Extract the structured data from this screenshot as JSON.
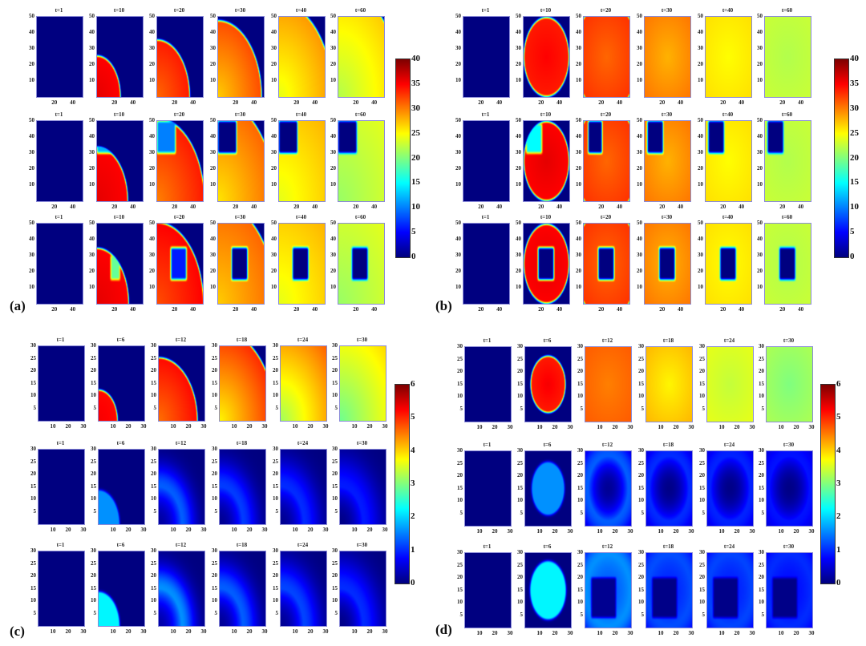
{
  "chart_data": [
    {
      "panel": "a",
      "label": "(a)",
      "type": "heatmap",
      "grid": [
        50,
        50
      ],
      "source": "corner",
      "times": [
        "t=1",
        "t=10",
        "t=20",
        "t=30",
        "t=40",
        "t=60"
      ],
      "x_ticks": [
        20,
        40
      ],
      "y_ticks": [
        10,
        20,
        30,
        40,
        50
      ],
      "colorbar": {
        "min": 0,
        "max": 40,
        "ticks": [
          0,
          5,
          10,
          15,
          20,
          25,
          30,
          35,
          40
        ]
      },
      "rows": [
        [
          {},
          {
            "r": 25,
            "vin": 36,
            "ve": 35
          },
          {
            "r": 35,
            "vin": 31,
            "ve": 34
          },
          {
            "r": 47,
            "vin": 27,
            "ve": 32
          },
          {
            "r": 58,
            "vin": 24,
            "ve": 29
          },
          {
            "r": 68,
            "vin": 22,
            "ve": 27
          }
        ],
        [
          {},
          {
            "r": 33,
            "vin": 36,
            "ve": 35,
            "hole": [
              0,
              20,
              30,
              50
            ],
            "hv": 12
          },
          {
            "r": 51,
            "vin": 30,
            "ve": 34,
            "hole": [
              0,
              20,
              30,
              50
            ],
            "hv": 10
          },
          {
            "r": 62,
            "vin": 26,
            "ve": 31,
            "hole": [
              0,
              20,
              30,
              50
            ],
            "hv": 0
          },
          {
            "r": 90,
            "vin": 24,
            "ve": 29,
            "hole": [
              0,
              20,
              30,
              50
            ],
            "hv": 0
          },
          {
            "r": 95,
            "vin": 21,
            "ve": 25,
            "hole": [
              0,
              20,
              30,
              50
            ],
            "hv": 0
          }
        ],
        [
          {},
          {
            "r": 34,
            "vin": 36,
            "ve": 35,
            "hole": [
              15,
              25,
              15,
              30
            ],
            "hv": 19
          },
          {
            "r": 50,
            "vin": 32,
            "ve": 35,
            "hole": [
              15,
              32,
              15,
              35
            ],
            "hv": 6
          },
          {
            "r": 62,
            "vin": 27,
            "ve": 31,
            "hole": [
              15,
              32,
              15,
              35
            ],
            "hv": 0
          },
          {
            "r": 90,
            "vin": 24,
            "ve": 29,
            "hole": [
              15,
              32,
              15,
              35
            ],
            "hv": 0
          },
          {
            "r": 95,
            "vin": 21,
            "ve": 25,
            "hole": [
              15,
              32,
              15,
              35
            ],
            "hv": 0
          }
        ]
      ]
    },
    {
      "panel": "b",
      "label": "(b)",
      "type": "heatmap",
      "grid": [
        50,
        50
      ],
      "source": "center",
      "times": [
        "t=1",
        "t=10",
        "t=20",
        "t=30",
        "t=40",
        "t=60"
      ],
      "x_ticks": [
        20,
        40
      ],
      "y_ticks": [
        10,
        20,
        30,
        40,
        50
      ],
      "colorbar": {
        "min": 0,
        "max": 40,
        "ticks": [
          0,
          5,
          10,
          15,
          20,
          25,
          30,
          35,
          40
        ]
      },
      "rows": [
        [
          {},
          {
            "r": 24,
            "vin": 35,
            "ve": 34
          },
          {
            "r": 34,
            "vin": 31,
            "ve": 33
          },
          {
            "r": 45,
            "vin": 28,
            "ve": 31
          },
          {
            "r": 60,
            "vin": 25,
            "ve": 27
          },
          {
            "r": 80,
            "vin": 22,
            "ve": 24
          }
        ],
        [
          {},
          {
            "r": 24,
            "vin": 36,
            "ve": 35,
            "hole": [
              3,
              20,
              30,
              48
            ],
            "hv": 15
          },
          {
            "r": 34,
            "vin": 31,
            "ve": 33,
            "hole": [
              5,
              20,
              30,
              50
            ],
            "hv": 0
          },
          {
            "r": 45,
            "vin": 28,
            "ve": 31,
            "hole": [
              3,
              20,
              30,
              50
            ],
            "hv": 0
          },
          {
            "r": 60,
            "vin": 25,
            "ve": 27,
            "hole": [
              3,
              20,
              30,
              50
            ],
            "hv": 0
          },
          {
            "r": 80,
            "vin": 22,
            "ve": 24,
            "hole": [
              3,
              20,
              30,
              50
            ],
            "hv": 0
          }
        ],
        [
          {},
          {
            "r": 24,
            "vin": 36,
            "ve": 35,
            "hole": [
              16,
              33,
              15,
              35
            ],
            "hv": 0
          },
          {
            "r": 34,
            "vin": 31,
            "ve": 33,
            "hole": [
              16,
              33,
              15,
              35
            ],
            "hv": 0
          },
          {
            "r": 45,
            "vin": 28,
            "ve": 31,
            "hole": [
              16,
              33,
              15,
              35
            ],
            "hv": 0
          },
          {
            "r": 60,
            "vin": 25,
            "ve": 27,
            "hole": [
              16,
              33,
              15,
              35
            ],
            "hv": 0
          },
          {
            "r": 80,
            "vin": 22,
            "ve": 24,
            "hole": [
              16,
              33,
              15,
              35
            ],
            "hv": 0
          }
        ]
      ]
    },
    {
      "panel": "c",
      "label": "(c)",
      "type": "heatmap",
      "grid": [
        30,
        30
      ],
      "source": "corner",
      "times": [
        "t=1",
        "t=6",
        "t=12",
        "t=18",
        "t=24",
        "t=30"
      ],
      "x_ticks": [
        10,
        20,
        30
      ],
      "y_ticks": [
        5,
        10,
        15,
        20,
        25,
        30
      ],
      "colorbar": {
        "min": 0,
        "max": 6,
        "ticks": [
          0,
          1,
          2,
          3,
          4,
          5,
          6
        ]
      },
      "rows": [
        [
          {},
          {
            "r": 12,
            "vin": 5.3,
            "ve": 5.2
          },
          {
            "r": 25,
            "vin": 4.6,
            "ve": 5.2
          },
          {
            "r": 36,
            "vin": 3.8,
            "ve": 5.0
          },
          {
            "r": 43,
            "vin": 3.2,
            "ve": 4.7
          },
          {
            "r": 55,
            "vin": 2.9,
            "ve": 4.3
          }
        ],
        [
          {},
          {
            "glow": true,
            "r": 13,
            "amp": 1.6,
            "inner": 1,
            "w": 1
          },
          {
            "glow": true,
            "r": 15,
            "amp": 1.3,
            "inner": 0.15,
            "w": 9
          },
          {
            "glow": true,
            "r": 15,
            "amp": 1.1,
            "inner": 0.1,
            "w": 10
          },
          {
            "glow": true,
            "r": 15,
            "amp": 1.0,
            "inner": 0.1,
            "w": 11
          },
          {
            "glow": true,
            "r": 15,
            "amp": 0.9,
            "inner": 0.05,
            "w": 12
          }
        ],
        [
          {},
          {
            "glow": true,
            "r": 13,
            "amp": 2.2,
            "inner": 1,
            "w": 1
          },
          {
            "glow": true,
            "r": 15,
            "amp": 1.6,
            "inner": 0.15,
            "w": 9
          },
          {
            "glow": true,
            "r": 15,
            "amp": 1.3,
            "inner": 0.1,
            "w": 10
          },
          {
            "glow": true,
            "r": 15,
            "amp": 1.15,
            "inner": 0.1,
            "w": 11
          },
          {
            "glow": true,
            "r": 15,
            "amp": 1.0,
            "inner": 0.05,
            "w": 12
          }
        ]
      ]
    },
    {
      "panel": "d",
      "label": "(d)",
      "type": "heatmap",
      "grid": [
        30,
        30
      ],
      "source": "center",
      "times": [
        "t=1",
        "t=6",
        "t=12",
        "t=18",
        "t=24",
        "t=30"
      ],
      "x_ticks": [
        10,
        20,
        30
      ],
      "y_ticks": [
        5,
        10,
        15,
        20,
        25,
        30
      ],
      "colorbar": {
        "min": 0,
        "max": 6,
        "ticks": [
          0,
          1,
          2,
          3,
          4,
          5,
          6
        ]
      },
      "rows": [
        [
          {},
          {
            "r": 11,
            "vin": 5.3,
            "ve": 5.1
          },
          {
            "r": 40,
            "vin": 4.5,
            "ve": 4.9
          },
          {
            "r": 40,
            "vin": 3.8,
            "ve": 4.5
          },
          {
            "r": 40,
            "vin": 3.4,
            "ve": 3.8
          },
          {
            "r": 40,
            "vin": 3.0,
            "ve": 3.5
          }
        ],
        [
          {},
          {
            "glow": true,
            "r": 10,
            "amp": 1.6,
            "inner": 1,
            "w": 1
          },
          {
            "glow": true,
            "r": 13,
            "amp": 1.3,
            "inner": 0.1,
            "w": 9
          },
          {
            "glow": true,
            "r": 13,
            "amp": 1.0,
            "inner": 0.05,
            "w": 10
          },
          {
            "glow": true,
            "r": 13,
            "amp": 0.95,
            "inner": 0.05,
            "w": 11
          },
          {
            "glow": true,
            "r": 13,
            "amp": 0.85,
            "inner": 0.05,
            "w": 12
          }
        ],
        [
          {},
          {
            "glow": true,
            "r": 11,
            "amp": 2.2,
            "inner": 1,
            "w": 1
          },
          {
            "glow": true,
            "r": 14,
            "amp": 1.6,
            "inner": 0.8,
            "w": 10,
            "hole": [
              4,
              20,
              4,
              20
            ],
            "hv": 0.1
          },
          {
            "glow": true,
            "r": 14,
            "amp": 1.2,
            "inner": 0.8,
            "w": 11,
            "hole": [
              4,
              20,
              4,
              20
            ],
            "hv": 0.05
          },
          {
            "glow": true,
            "r": 14,
            "amp": 1.15,
            "inner": 0.8,
            "w": 11,
            "hole": [
              4,
              20,
              4,
              20
            ],
            "hv": 0.05
          },
          {
            "glow": true,
            "r": 14,
            "amp": 1.0,
            "inner": 0.8,
            "w": 12,
            "hole": [
              4,
              20,
              4,
              20
            ],
            "hv": 0.05
          }
        ]
      ]
    }
  ]
}
